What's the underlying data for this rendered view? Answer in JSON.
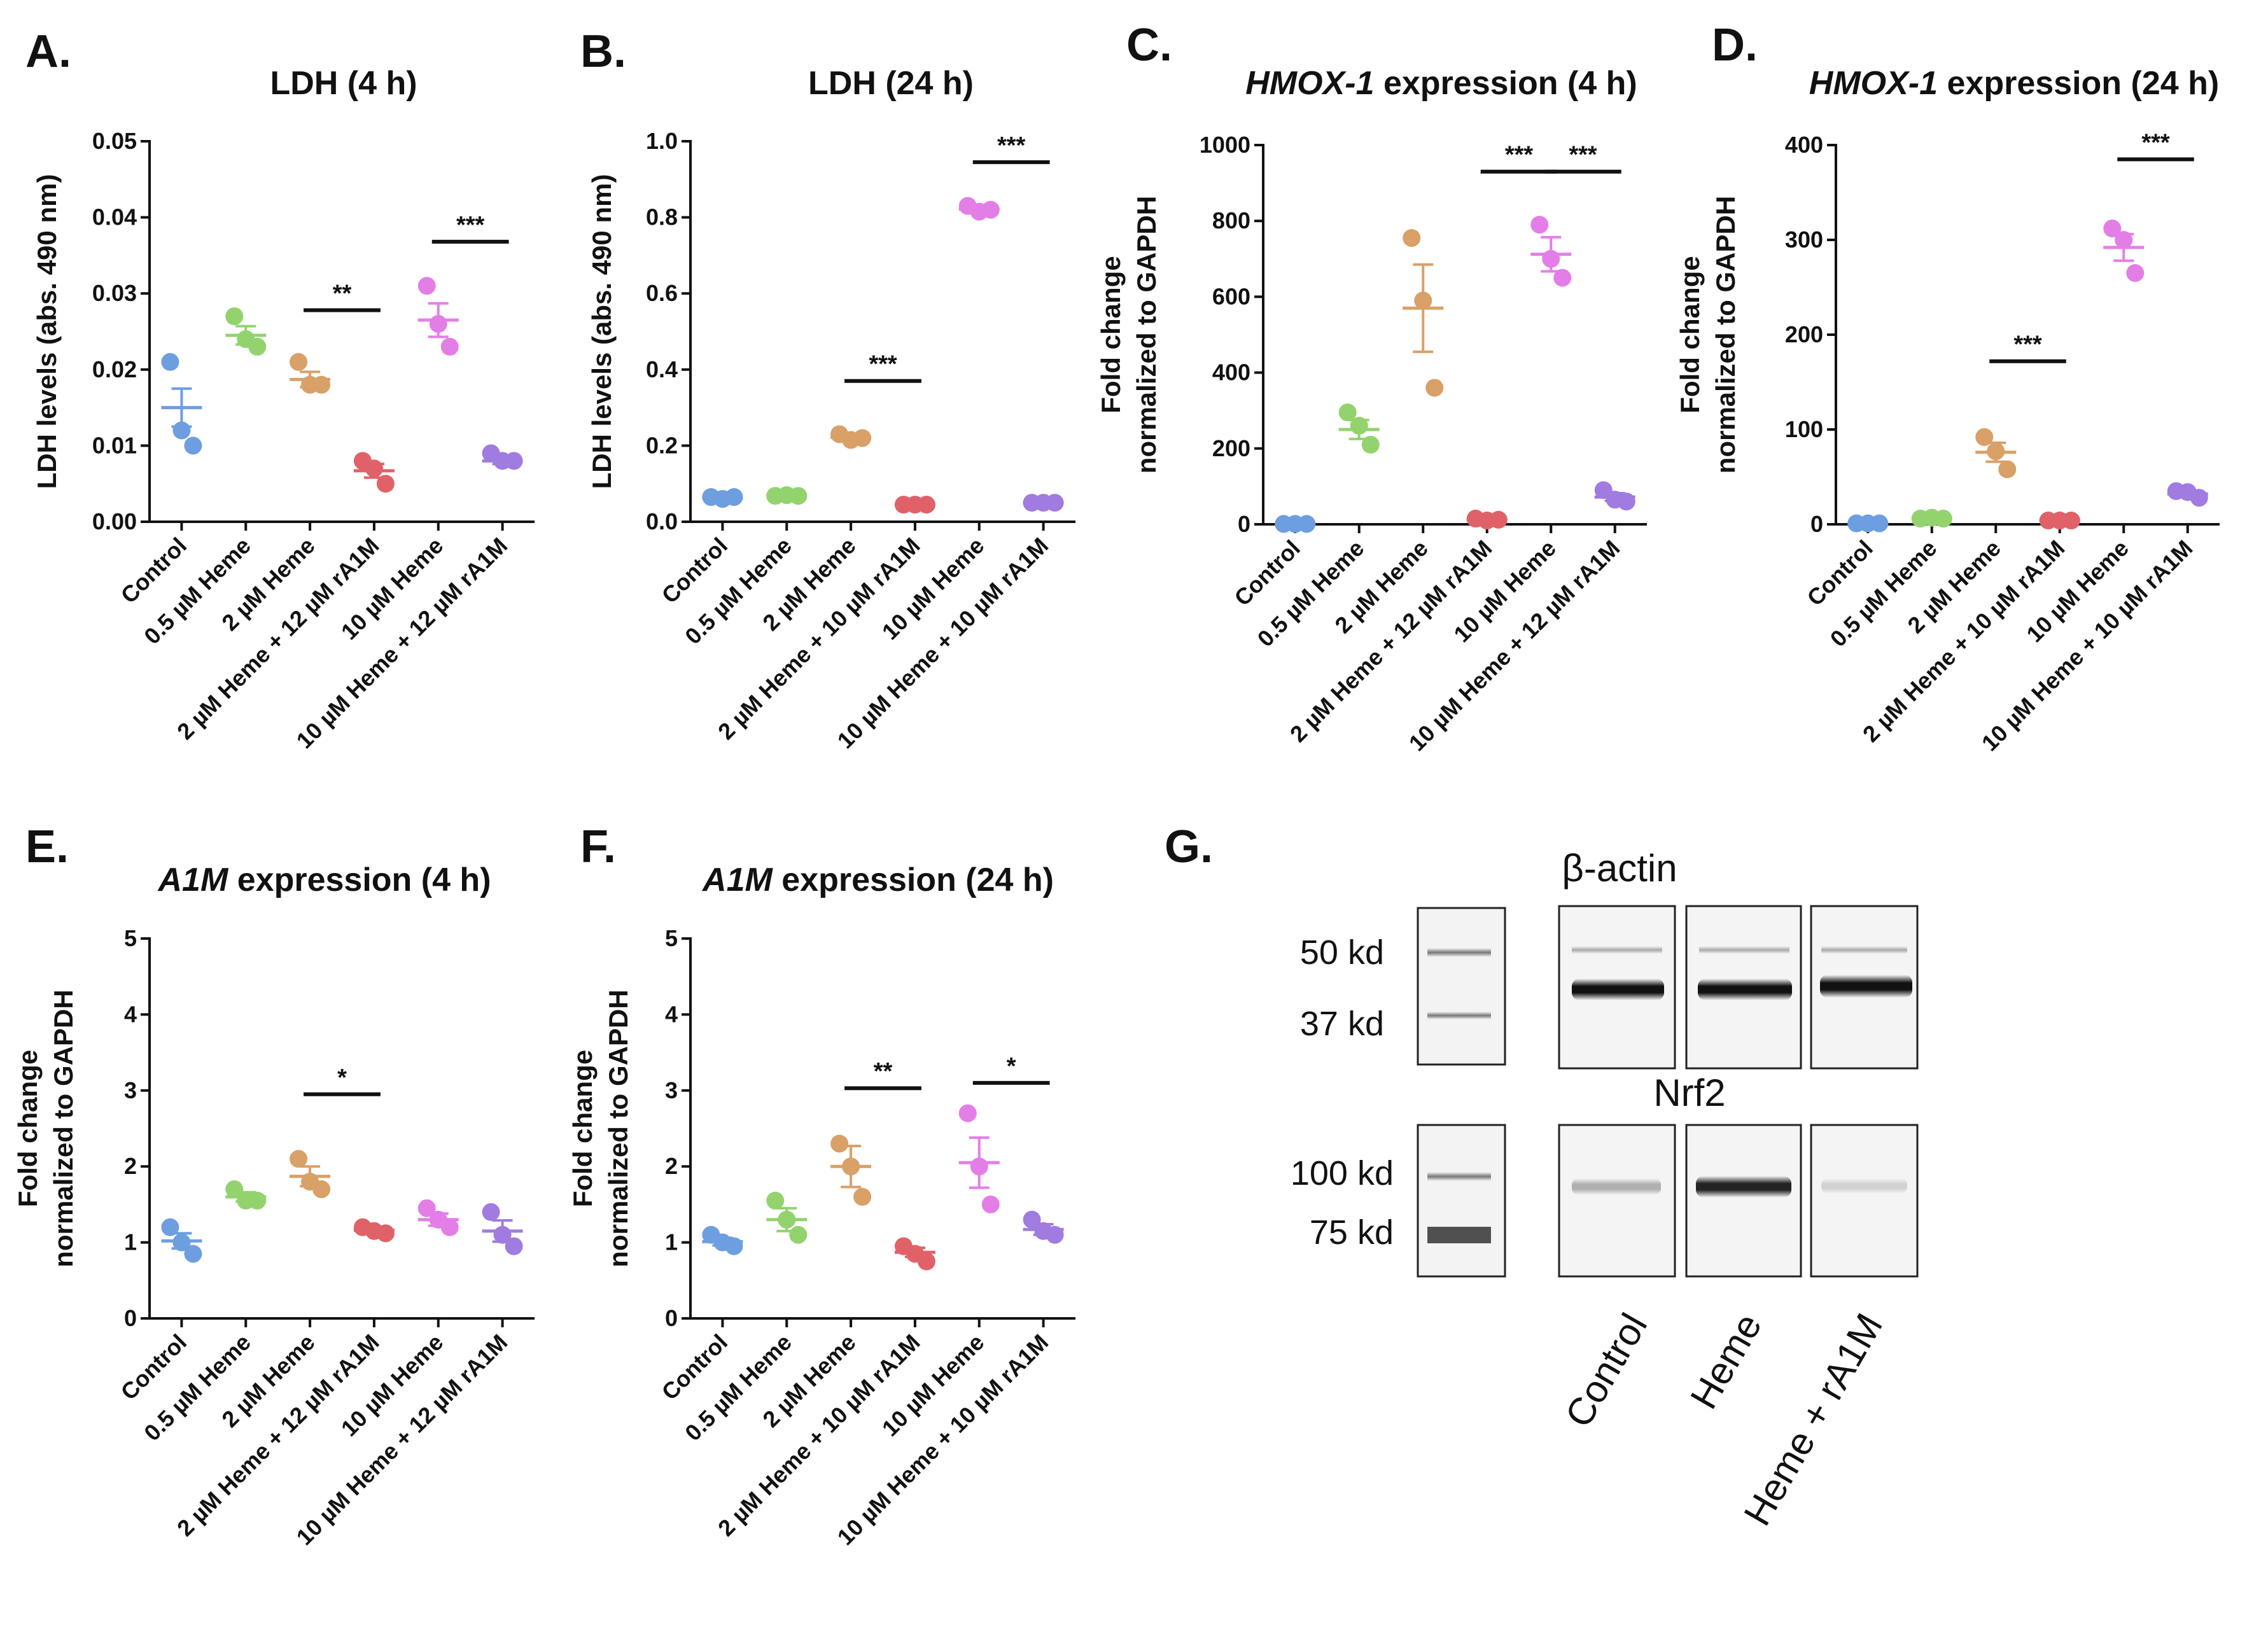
{
  "panels": [
    {
      "id": "A",
      "label": "A.",
      "title": {
        "italic": "",
        "rest": "LDH (4 h)"
      },
      "ylabel": [
        "LDH levels (abs. 490 nm)"
      ],
      "yticks": [
        "0.00",
        "0.01",
        "0.02",
        "0.03",
        "0.04",
        "0.05"
      ]
    },
    {
      "id": "B",
      "label": "B.",
      "title": {
        "italic": "",
        "rest": "LDH (24 h)"
      },
      "ylabel": [
        "LDH levels (abs. 490 nm)"
      ],
      "yticks": [
        "0.0",
        "0.2",
        "0.4",
        "0.6",
        "0.8",
        "1.0"
      ]
    },
    {
      "id": "C",
      "label": "C.",
      "title": {
        "italic": "HMOX-1",
        "rest": " expression (4 h)"
      },
      "ylabel": [
        "Fold change",
        "normalized to GAPDH"
      ],
      "yticks": [
        "0",
        "200",
        "400",
        "600",
        "800",
        "1000"
      ]
    },
    {
      "id": "D",
      "label": "D.",
      "title": {
        "italic": "HMOX-1",
        "rest": " expression (24 h)"
      },
      "ylabel": [
        "Fold change",
        "normalized to GAPDH"
      ],
      "yticks": [
        "0",
        "100",
        "200",
        "300",
        "400"
      ]
    },
    {
      "id": "E",
      "label": "E.",
      "title": {
        "italic": "A1M",
        "rest": " expression (4 h)"
      },
      "ylabel": [
        "Fold change",
        "normalized to GAPDH"
      ],
      "yticks": [
        "0",
        "1",
        "2",
        "3",
        "4",
        "5"
      ]
    },
    {
      "id": "F",
      "label": "F.",
      "title": {
        "italic": "A1M",
        "rest": " expression (24 h)"
      },
      "ylabel": [
        "Fold change",
        "normalized to GAPDH"
      ],
      "yticks": [
        "0",
        "1",
        "2",
        "3",
        "4",
        "5"
      ]
    }
  ],
  "chart_data": [
    {
      "id": "A",
      "type": "scatter",
      "title": "LDH (4 h)",
      "ylabel": "LDH levels (abs. 490 nm)",
      "ylim": [
        0,
        0.05
      ],
      "categories": [
        "Control",
        "0.5 µM Heme",
        "2 µM Heme",
        "2 µM Heme + 12 µM rA1M",
        "10 µM Heme",
        "10 µM Heme + 12 µM rA1M"
      ],
      "colors": [
        "#6d9ee0",
        "#92d36e",
        "#d9a067",
        "#e06268",
        "#e47ee7",
        "#a07be0"
      ],
      "points": [
        [
          0.021,
          0.012,
          0.01
        ],
        [
          0.027,
          0.024,
          0.023
        ],
        [
          0.021,
          0.018,
          0.018
        ],
        [
          0.008,
          0.007,
          0.005
        ],
        [
          0.031,
          0.026,
          0.023
        ],
        [
          0.009,
          0.008,
          0.008
        ]
      ],
      "mean": [
        0.015,
        0.0245,
        0.0187,
        0.0067,
        0.0265,
        0.008
      ],
      "sem": [
        0.0025,
        0.0012,
        0.001,
        0.0009,
        0.0022,
        0.0004
      ],
      "significance": [
        {
          "from": 2,
          "to": 3,
          "label": "**",
          "y": 0.0278
        },
        {
          "from": 4,
          "to": 5,
          "label": "***",
          "y": 0.0368
        }
      ]
    },
    {
      "id": "B",
      "type": "scatter",
      "title": "LDH (24 h)",
      "ylabel": "LDH levels (abs. 490 nm)",
      "ylim": [
        0,
        1.0
      ],
      "categories": [
        "Control",
        "0.5 µM Heme",
        "2 µM Heme",
        "2 µM Heme + 10 µM rA1M",
        "10 µM Heme",
        "10 µM Heme + 10 µM rA1M"
      ],
      "colors": [
        "#6d9ee0",
        "#92d36e",
        "#d9a067",
        "#e06268",
        "#e47ee7",
        "#a07be0"
      ],
      "points": [
        [
          0.065,
          0.06,
          0.065
        ],
        [
          0.068,
          0.07,
          0.068
        ],
        [
          0.23,
          0.215,
          0.22
        ],
        [
          0.045,
          0.045,
          0.045
        ],
        [
          0.83,
          0.815,
          0.82
        ],
        [
          0.05,
          0.05,
          0.05
        ]
      ],
      "mean": [
        0.063,
        0.069,
        0.222,
        0.045,
        0.822,
        0.05
      ],
      "sem": [
        0.003,
        0.001,
        0.005,
        0.001,
        0.006,
        0.001
      ],
      "significance": [
        {
          "from": 2,
          "to": 3,
          "label": "***",
          "y": 0.37
        },
        {
          "from": 4,
          "to": 5,
          "label": "***",
          "y": 0.945
        }
      ]
    },
    {
      "id": "C",
      "type": "scatter",
      "title": "HMOX-1 expression (4 h)",
      "ylabel": "Fold change normalized to GAPDH",
      "ylim": [
        0,
        1000
      ],
      "categories": [
        "Control",
        "0.5 µM Heme",
        "2 µM Heme",
        "2 µM Heme + 12 µM rA1M",
        "10 µM Heme",
        "10 µM Heme + 12 µM rA1M"
      ],
      "colors": [
        "#6d9ee0",
        "#92d36e",
        "#d9a067",
        "#e06268",
        "#e47ee7",
        "#a07be0"
      ],
      "points": [
        [
          1,
          1,
          1
        ],
        [
          295,
          260,
          210
        ],
        [
          755,
          590,
          360
        ],
        [
          15,
          10,
          12
        ],
        [
          790,
          700,
          650
        ],
        [
          90,
          65,
          60
        ]
      ],
      "mean": [
        1,
        250,
        570,
        12,
        712,
        72
      ],
      "sem": [
        0.5,
        25,
        115,
        2,
        45,
        10
      ],
      "significance": [
        {
          "from": 3,
          "to": 4,
          "label": "***",
          "y": 930
        },
        {
          "from": 4,
          "to": 5,
          "label": "***",
          "y": 930
        }
      ]
    },
    {
      "id": "D",
      "type": "scatter",
      "title": "HMOX-1 expression (24 h)",
      "ylabel": "Fold change normalized to GAPDH",
      "ylim": [
        0,
        400
      ],
      "categories": [
        "Control",
        "0.5 µM Heme",
        "2 µM Heme",
        "2 µM Heme + 10 µM rA1M",
        "10 µM Heme",
        "10 µM Heme + 10 µM rA1M"
      ],
      "colors": [
        "#6d9ee0",
        "#92d36e",
        "#d9a067",
        "#e06268",
        "#e47ee7",
        "#a07be0"
      ],
      "points": [
        [
          1,
          1,
          1
        ],
        [
          6,
          7,
          6
        ],
        [
          92,
          77,
          58
        ],
        [
          4,
          4,
          4
        ],
        [
          312,
          300,
          265
        ],
        [
          35,
          34,
          28
        ]
      ],
      "mean": [
        1,
        6.5,
        76,
        4,
        292,
        32
      ],
      "sem": [
        0.3,
        0.5,
        10,
        0.3,
        14,
        2.5
      ],
      "significance": [
        {
          "from": 2,
          "to": 3,
          "label": "***",
          "y": 172
        },
        {
          "from": 4,
          "to": 5,
          "label": "***",
          "y": 385
        }
      ]
    },
    {
      "id": "E",
      "type": "scatter",
      "title": "A1M expression (4 h)",
      "ylabel": "Fold change normalized to GAPDH",
      "ylim": [
        0,
        5
      ],
      "categories": [
        "Control",
        "0.5 µM Heme",
        "2 µM Heme",
        "2 µM Heme + 12 µM rA1M",
        "10 µM Heme",
        "10 µM Heme + 12 µM rA1M"
      ],
      "colors": [
        "#6d9ee0",
        "#92d36e",
        "#d9a067",
        "#e06268",
        "#e47ee7",
        "#a07be0"
      ],
      "points": [
        [
          1.2,
          1.0,
          0.85
        ],
        [
          1.7,
          1.55,
          1.55
        ],
        [
          2.1,
          1.8,
          1.7
        ],
        [
          1.2,
          1.15,
          1.12
        ],
        [
          1.45,
          1.3,
          1.2
        ],
        [
          1.4,
          1.1,
          0.95
        ]
      ],
      "mean": [
        1.02,
        1.6,
        1.87,
        1.16,
        1.3,
        1.15
      ],
      "sem": [
        0.1,
        0.06,
        0.13,
        0.03,
        0.08,
        0.14
      ],
      "significance": [
        {
          "from": 2,
          "to": 3,
          "label": "*",
          "y": 2.95
        }
      ]
    },
    {
      "id": "F",
      "type": "scatter",
      "title": "A1M expression (24 h)",
      "ylabel": "Fold change normalized to GAPDH",
      "ylim": [
        0,
        5
      ],
      "categories": [
        "Control",
        "0.5 µM Heme",
        "2 µM Heme",
        "2 µM Heme + 10 µM rA1M",
        "10 µM Heme",
        "10 µM Heme + 10 µM rA1M"
      ],
      "colors": [
        "#6d9ee0",
        "#92d36e",
        "#d9a067",
        "#e06268",
        "#e47ee7",
        "#a07be0"
      ],
      "points": [
        [
          1.1,
          1.0,
          0.95
        ],
        [
          1.55,
          1.3,
          1.1
        ],
        [
          2.3,
          2.0,
          1.6
        ],
        [
          0.95,
          0.85,
          0.75
        ],
        [
          2.7,
          2.0,
          1.5
        ],
        [
          1.3,
          1.15,
          1.1
        ]
      ],
      "mean": [
        1.01,
        1.3,
        2.0,
        0.87,
        2.05,
        1.17
      ],
      "sem": [
        0.05,
        0.15,
        0.27,
        0.06,
        0.33,
        0.07
      ],
      "significance": [
        {
          "from": 2,
          "to": 3,
          "label": "**",
          "y": 3.03
        },
        {
          "from": 4,
          "to": 5,
          "label": "*",
          "y": 3.1
        }
      ]
    }
  ],
  "blot": {
    "label": "G.",
    "actin_title": "β-actin",
    "nrf2_title": "Nrf2",
    "actin_markers": [
      "50 kd",
      "37 kd"
    ],
    "nrf2_markers": [
      "100 kd",
      "75 kd"
    ],
    "lanes": [
      "Control",
      "Heme",
      "Heme + rA1M"
    ],
    "nrf2_intensity": [
      0.3,
      0.92,
      0.15
    ]
  }
}
